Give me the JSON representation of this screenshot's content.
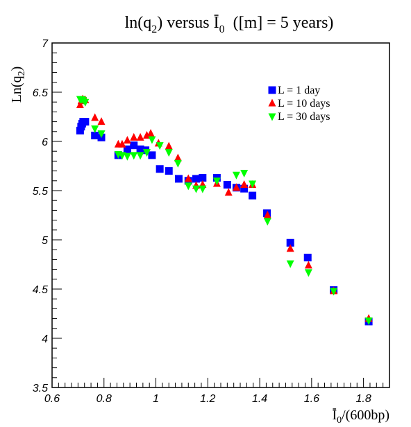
{
  "chart_data": {
    "type": "scatter",
    "title": {
      "text_a": "ln(q",
      "sub_a": "2",
      "text_b": ") versus ",
      "overline": "I",
      "sub_b": "0",
      "text_c": "  ([m] = 5 years)"
    },
    "xlabel": {
      "overline": "I",
      "sub": "0",
      "rest": "/(600bp)"
    },
    "ylabel": {
      "text": "Ln(q",
      "sub": "2",
      "close": ")"
    },
    "xlim": [
      0.6,
      1.9
    ],
    "ylim": [
      3.5,
      7
    ],
    "x_ticks": [
      "0.6",
      "0.8",
      "1",
      "1.2",
      "1.4",
      "1.6",
      "1.8"
    ],
    "y_ticks": [
      "3.5",
      "4",
      "4.5",
      "5",
      "5.5",
      "6",
      "6.5",
      "7"
    ],
    "grid": false,
    "legend_position": "top-right",
    "series": [
      {
        "name": "L = 1 day",
        "marker": "square",
        "color": "#0000ff",
        "points": [
          [
            0.708,
            6.11
          ],
          [
            0.712,
            6.15
          ],
          [
            0.716,
            6.18
          ],
          [
            0.72,
            6.2
          ],
          [
            0.728,
            6.2
          ],
          [
            0.765,
            6.06
          ],
          [
            0.79,
            6.04
          ],
          [
            0.855,
            5.86
          ],
          [
            0.89,
            5.92
          ],
          [
            0.915,
            5.96
          ],
          [
            0.94,
            5.92
          ],
          [
            0.96,
            5.91
          ],
          [
            0.985,
            5.86
          ],
          [
            1.015,
            5.72
          ],
          [
            1.05,
            5.7
          ],
          [
            1.088,
            5.62
          ],
          [
            1.125,
            5.6
          ],
          [
            1.155,
            5.62
          ],
          [
            1.18,
            5.63
          ],
          [
            1.235,
            5.63
          ],
          [
            1.275,
            5.56
          ],
          [
            1.31,
            5.53
          ],
          [
            1.34,
            5.52
          ],
          [
            1.372,
            5.45
          ],
          [
            1.428,
            5.27
          ],
          [
            1.518,
            4.97
          ],
          [
            1.585,
            4.82
          ],
          [
            1.685,
            4.49
          ],
          [
            1.82,
            4.17
          ]
        ]
      },
      {
        "name": "L = 10 days",
        "marker": "triangle-up",
        "color": "#ff0000",
        "points": [
          [
            0.708,
            6.37
          ],
          [
            0.713,
            6.41
          ],
          [
            0.718,
            6.43
          ],
          [
            0.728,
            6.42
          ],
          [
            0.765,
            6.24
          ],
          [
            0.79,
            6.2
          ],
          [
            0.855,
            5.97
          ],
          [
            0.87,
            5.97
          ],
          [
            0.89,
            6.01
          ],
          [
            0.915,
            6.04
          ],
          [
            0.94,
            6.04
          ],
          [
            0.965,
            6.06
          ],
          [
            0.98,
            6.08
          ],
          [
            1.01,
            5.98
          ],
          [
            1.05,
            5.95
          ],
          [
            1.085,
            5.83
          ],
          [
            1.125,
            5.62
          ],
          [
            1.155,
            5.55
          ],
          [
            1.18,
            5.56
          ],
          [
            1.235,
            5.57
          ],
          [
            1.28,
            5.48
          ],
          [
            1.31,
            5.53
          ],
          [
            1.34,
            5.56
          ],
          [
            1.372,
            5.56
          ],
          [
            1.43,
            5.25
          ],
          [
            1.518,
            4.91
          ],
          [
            1.588,
            4.74
          ],
          [
            1.685,
            4.48
          ],
          [
            1.82,
            4.2
          ]
        ]
      },
      {
        "name": "L = 30 days",
        "marker": "triangle-down",
        "color": "#00ff00",
        "points": [
          [
            0.708,
            6.43
          ],
          [
            0.713,
            6.43
          ],
          [
            0.72,
            6.42
          ],
          [
            0.728,
            6.4
          ],
          [
            0.765,
            6.13
          ],
          [
            0.79,
            6.08
          ],
          [
            0.855,
            5.87
          ],
          [
            0.87,
            5.86
          ],
          [
            0.89,
            5.85
          ],
          [
            0.915,
            5.86
          ],
          [
            0.94,
            5.86
          ],
          [
            0.965,
            5.89
          ],
          [
            0.985,
            6.02
          ],
          [
            1.015,
            5.96
          ],
          [
            1.05,
            5.89
          ],
          [
            1.085,
            5.78
          ],
          [
            1.125,
            5.55
          ],
          [
            1.155,
            5.52
          ],
          [
            1.18,
            5.52
          ],
          [
            1.235,
            5.6
          ],
          [
            1.31,
            5.66
          ],
          [
            1.34,
            5.68
          ],
          [
            1.372,
            5.57
          ],
          [
            1.43,
            5.19
          ],
          [
            1.518,
            4.76
          ],
          [
            1.588,
            4.67
          ],
          [
            1.685,
            4.48
          ],
          [
            1.82,
            4.18
          ]
        ]
      }
    ]
  }
}
